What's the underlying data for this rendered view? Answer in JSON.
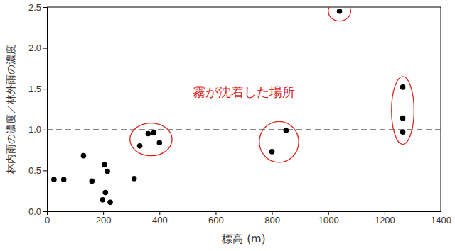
{
  "chart_data": {
    "type": "scatter",
    "x_label": "標高 (m)",
    "y_label": "林内雨の濃度／林外雨の濃度",
    "x": [
      25,
      60,
      130,
      160,
      198,
      205,
      208,
      215,
      225,
      310,
      330,
      360,
      380,
      400,
      800,
      850,
      1040,
      1265,
      1265,
      1265
    ],
    "values": [
      0.39,
      0.39,
      0.68,
      0.37,
      0.14,
      0.57,
      0.23,
      0.49,
      0.11,
      0.4,
      0.8,
      0.95,
      0.96,
      0.84,
      0.73,
      0.99,
      2.45,
      1.52,
      1.14,
      0.97
    ],
    "color": "#000000",
    "marker": "circle",
    "xlim": [
      0,
      1400
    ],
    "xticks": [
      0,
      200,
      400,
      600,
      800,
      1000,
      1200,
      1400
    ],
    "ylim": [
      0,
      2.5
    ],
    "yticks": [
      {
        "value": 0,
        "label": "0.0"
      },
      0.5,
      {
        "value": 1,
        "label": "1.0"
      },
      1.5,
      {
        "value": 2,
        "label": "2.0"
      },
      2.5
    ],
    "grid": false,
    "reference_lines": [
      {
        "y": 1,
        "line_style": "dashed",
        "color": "#555555"
      }
    ],
    "highlights": {
      "color": "#d9261c",
      "regions": [
        {
          "xlim": [
            295,
            445
          ],
          "ylim": [
            0.68,
            1.08
          ]
        },
        {
          "xlim": [
            755,
            895
          ],
          "ylim": [
            0.6,
            1.1
          ]
        },
        {
          "xlim": [
            1000,
            1080
          ],
          "ylim": [
            2.33,
            2.57
          ]
        },
        {
          "xlim": [
            1225,
            1305
          ],
          "ylim": [
            0.82,
            1.65
          ]
        }
      ]
    },
    "annotations": [
      {
        "text": "霧が沈着した場所",
        "x": 700,
        "y": 1.45,
        "color": "#d9261c"
      }
    ]
  }
}
